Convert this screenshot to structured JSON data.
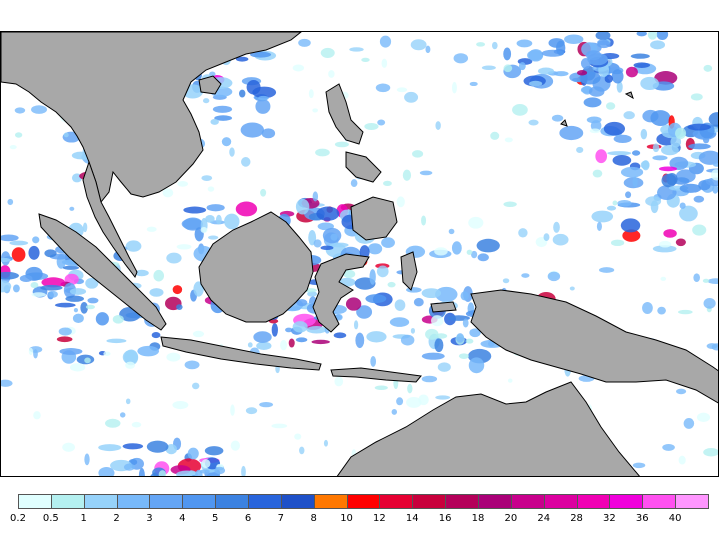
{
  "legend": {
    "colors": [
      "#e0ffff",
      "#b4f0f0",
      "#96d2fa",
      "#78b9fa",
      "#64a5f5",
      "#5096f0",
      "#3c82e1",
      "#2864dc",
      "#1e50c8",
      "#ff7800",
      "#ff0000",
      "#e60032",
      "#c8003c",
      "#b4005a",
      "#aa0078",
      "#c8008c",
      "#dc00a0",
      "#f000b4",
      "#f000dc",
      "#ff50f0",
      "#ff96ff"
    ],
    "labels": [
      "0.2",
      "0.5",
      "1",
      "2",
      "3",
      "4",
      "5",
      "6",
      "7",
      "8",
      "10",
      "12",
      "14",
      "16",
      "18",
      "20",
      "24",
      "28",
      "32",
      "36",
      "40"
    ]
  },
  "colors": {
    "land": "#a8a8a8",
    "sea": "#ffffff",
    "coast": "#000000"
  }
}
